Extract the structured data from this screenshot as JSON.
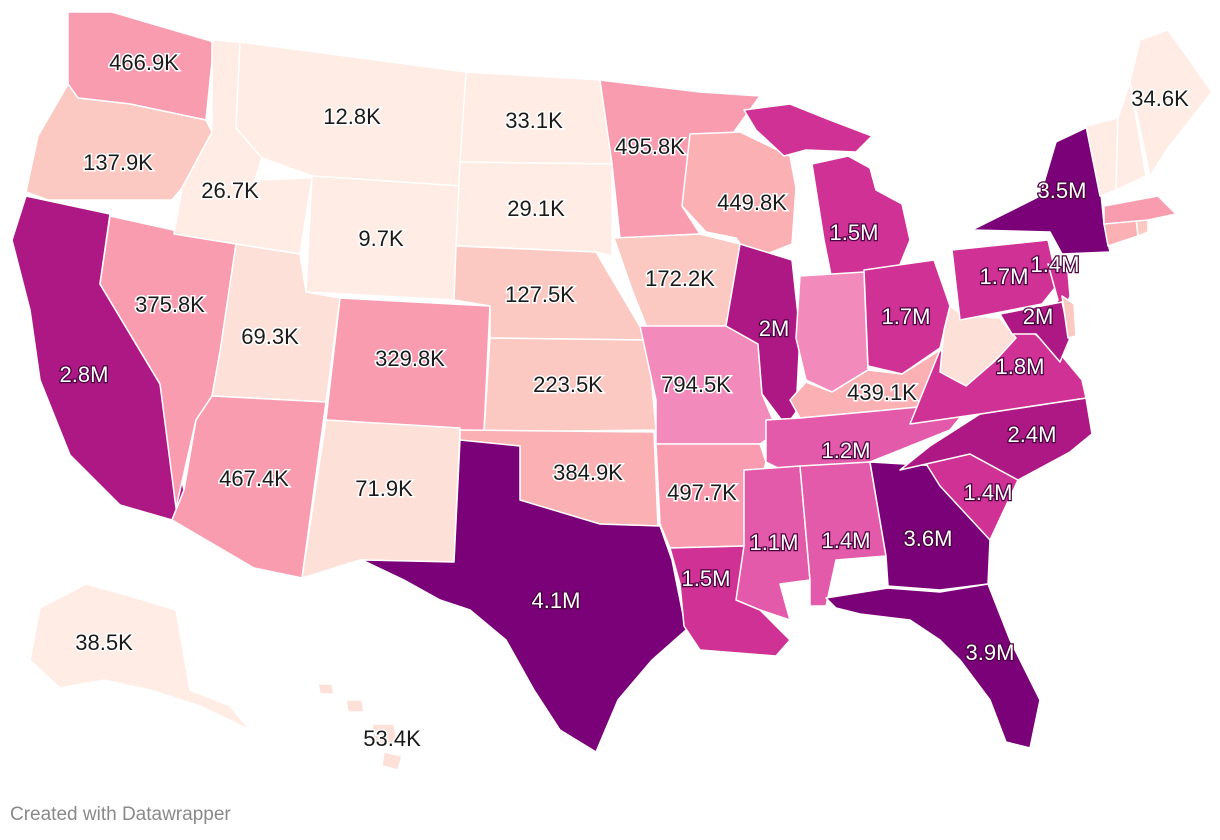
{
  "credit": "Created with Datawrapper",
  "colors": {
    "scale": [
      "#ffece4",
      "#fde0d7",
      "#fcc9c2",
      "#fbb0b4",
      "#f99cb0",
      "#f28abb",
      "#e35aaa",
      "#cf3195",
      "#ad1885",
      "#7a0177"
    ],
    "label_dark": "#1a1a1a",
    "label_light": "#ffffff",
    "border": "#ffffff"
  },
  "map": {
    "type": "choropleth",
    "region": "United States",
    "states": [
      {
        "id": "WA",
        "label": "466.9K",
        "value": 466900,
        "color_step": 4
      },
      {
        "id": "OR",
        "label": "137.9K",
        "value": 137900,
        "color_step": 2
      },
      {
        "id": "CA",
        "label": "2.8M",
        "value": 2800000,
        "color_step": 8
      },
      {
        "id": "NV",
        "label": "375.8K",
        "value": 375800,
        "color_step": 4
      },
      {
        "id": "ID",
        "label": "26.7K",
        "value": 26700,
        "color_step": 0
      },
      {
        "id": "MT",
        "label": "12.8K",
        "value": 12800,
        "color_step": 0
      },
      {
        "id": "WY",
        "label": "9.7K",
        "value": 9700,
        "color_step": 0
      },
      {
        "id": "UT",
        "label": "69.3K",
        "value": 69300,
        "color_step": 1
      },
      {
        "id": "AZ",
        "label": "467.4K",
        "value": 467400,
        "color_step": 4
      },
      {
        "id": "CO",
        "label": "329.8K",
        "value": 329800,
        "color_step": 4
      },
      {
        "id": "NM",
        "label": "71.9K",
        "value": 71900,
        "color_step": 1
      },
      {
        "id": "ND",
        "label": "33.1K",
        "value": 33100,
        "color_step": 0
      },
      {
        "id": "SD",
        "label": "29.1K",
        "value": 29100,
        "color_step": 0
      },
      {
        "id": "NE",
        "label": "127.5K",
        "value": 127500,
        "color_step": 2
      },
      {
        "id": "KS",
        "label": "223.5K",
        "value": 223500,
        "color_step": 2
      },
      {
        "id": "OK",
        "label": "384.9K",
        "value": 384900,
        "color_step": 3
      },
      {
        "id": "TX",
        "label": "4.1M",
        "value": 4100000,
        "color_step": 9
      },
      {
        "id": "MN",
        "label": "495.8K",
        "value": 495800,
        "color_step": 4
      },
      {
        "id": "IA",
        "label": "172.2K",
        "value": 172200,
        "color_step": 2
      },
      {
        "id": "MO",
        "label": "794.5K",
        "value": 794500,
        "color_step": 5
      },
      {
        "id": "AR",
        "label": "497.7K",
        "value": 497700,
        "color_step": 4
      },
      {
        "id": "LA",
        "label": "1.5M",
        "value": 1500000,
        "color_step": 7
      },
      {
        "id": "WI",
        "label": "449.8K",
        "value": 449800,
        "color_step": 3
      },
      {
        "id": "IL",
        "label": "2M",
        "value": 2000000,
        "color_step": 8
      },
      {
        "id": "MI",
        "label": "1.5M",
        "value": 1500000,
        "color_step": 7
      },
      {
        "id": "IN",
        "label": "",
        "value": null,
        "color_step": 5
      },
      {
        "id": "OH",
        "label": "1.7M",
        "value": 1700000,
        "color_step": 7
      },
      {
        "id": "KY",
        "label": "439.1K",
        "value": 439100,
        "color_step": 3
      },
      {
        "id": "TN",
        "label": "1.2M",
        "value": 1200000,
        "color_step": 6
      },
      {
        "id": "MS",
        "label": "1.1M",
        "value": 1100000,
        "color_step": 6
      },
      {
        "id": "AL",
        "label": "1.4M",
        "value": 1400000,
        "color_step": 6
      },
      {
        "id": "GA",
        "label": "3.6M",
        "value": 3600000,
        "color_step": 9
      },
      {
        "id": "FL",
        "label": "3.9M",
        "value": 3900000,
        "color_step": 9
      },
      {
        "id": "SC",
        "label": "1.4M",
        "value": 1400000,
        "color_step": 7
      },
      {
        "id": "NC",
        "label": "2.4M",
        "value": 2400000,
        "color_step": 8
      },
      {
        "id": "VA",
        "label": "1.8M",
        "value": 1800000,
        "color_step": 7
      },
      {
        "id": "WV",
        "label": "",
        "value": null,
        "color_step": 1
      },
      {
        "id": "PA",
        "label": "1.7M",
        "value": 1700000,
        "color_step": 7
      },
      {
        "id": "NY",
        "label": "3.5M",
        "value": 3500000,
        "color_step": 9
      },
      {
        "id": "NJ",
        "label": "1.4M",
        "value": 1400000,
        "color_step": 7
      },
      {
        "id": "MD",
        "label": "2M",
        "value": 2000000,
        "color_step": 8
      },
      {
        "id": "DE",
        "label": "",
        "value": null,
        "color_step": 2
      },
      {
        "id": "CT",
        "label": "",
        "value": null,
        "color_step": 3
      },
      {
        "id": "RI",
        "label": "",
        "value": null,
        "color_step": 2
      },
      {
        "id": "MA",
        "label": "",
        "value": null,
        "color_step": 4
      },
      {
        "id": "VT",
        "label": "",
        "value": null,
        "color_step": 0
      },
      {
        "id": "NH",
        "label": "",
        "value": null,
        "color_step": 0
      },
      {
        "id": "ME",
        "label": "34.6K",
        "value": 34600,
        "color_step": 0
      },
      {
        "id": "AK",
        "label": "38.5K",
        "value": 38500,
        "color_step": 0
      },
      {
        "id": "HI",
        "label": "53.4K",
        "value": 53400,
        "color_step": 1
      }
    ]
  }
}
